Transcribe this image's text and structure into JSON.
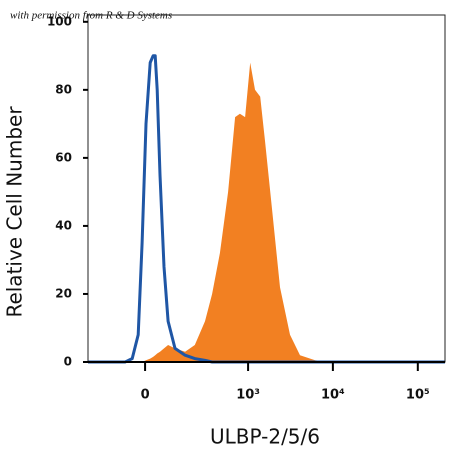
{
  "chart_data": {
    "type": "flow-histogram",
    "watermark": "with permission from R & D Systems",
    "xlabel": "ULBP-2/5/6",
    "ylabel": "Relative Cell Number",
    "xscale": "asinh",
    "xlim": [
      -276,
      209000
    ],
    "ylim": [
      0,
      102
    ],
    "xticks": [
      0,
      {
        "value": 1000,
        "label": "10³"
      },
      {
        "value": 10000,
        "label": "10⁴"
      },
      {
        "value": 100000,
        "label": "10⁵"
      }
    ],
    "yticks": [
      0,
      20,
      40,
      60,
      80,
      100
    ],
    "x": [
      -276,
      -189,
      -111,
      -70,
      -44,
      -23,
      -10,
      3,
      17,
      27,
      34,
      41,
      51,
      66,
      82,
      111,
      161,
      221,
      300,
      368,
      460,
      577,
      701,
      800,
      921,
      1058,
      1209,
      1390,
      1587,
      1919,
      2386,
      3124,
      4096,
      6175,
      9225,
      209000
    ],
    "series": [
      {
        "style": "area",
        "color": "#f28022",
        "values": [
          0,
          0,
          0,
          0,
          0,
          0,
          0,
          0.5,
          1,
          1.5,
          2,
          2.5,
          3,
          4,
          5,
          4,
          3,
          5,
          12,
          20,
          32,
          50,
          72,
          73,
          72,
          88,
          80,
          78,
          65,
          45,
          22,
          8,
          2,
          0.5,
          0,
          0
        ]
      },
      {
        "style": "line",
        "color": "#1f56a5",
        "values": [
          0,
          0,
          0,
          0,
          1,
          8,
          35,
          70,
          88,
          90,
          90,
          80,
          55,
          28,
          12,
          4,
          2,
          1,
          0.5,
          0,
          0,
          0,
          0,
          0,
          0,
          0,
          0,
          0,
          0,
          0,
          0,
          0,
          0,
          0,
          0,
          0
        ]
      }
    ]
  }
}
